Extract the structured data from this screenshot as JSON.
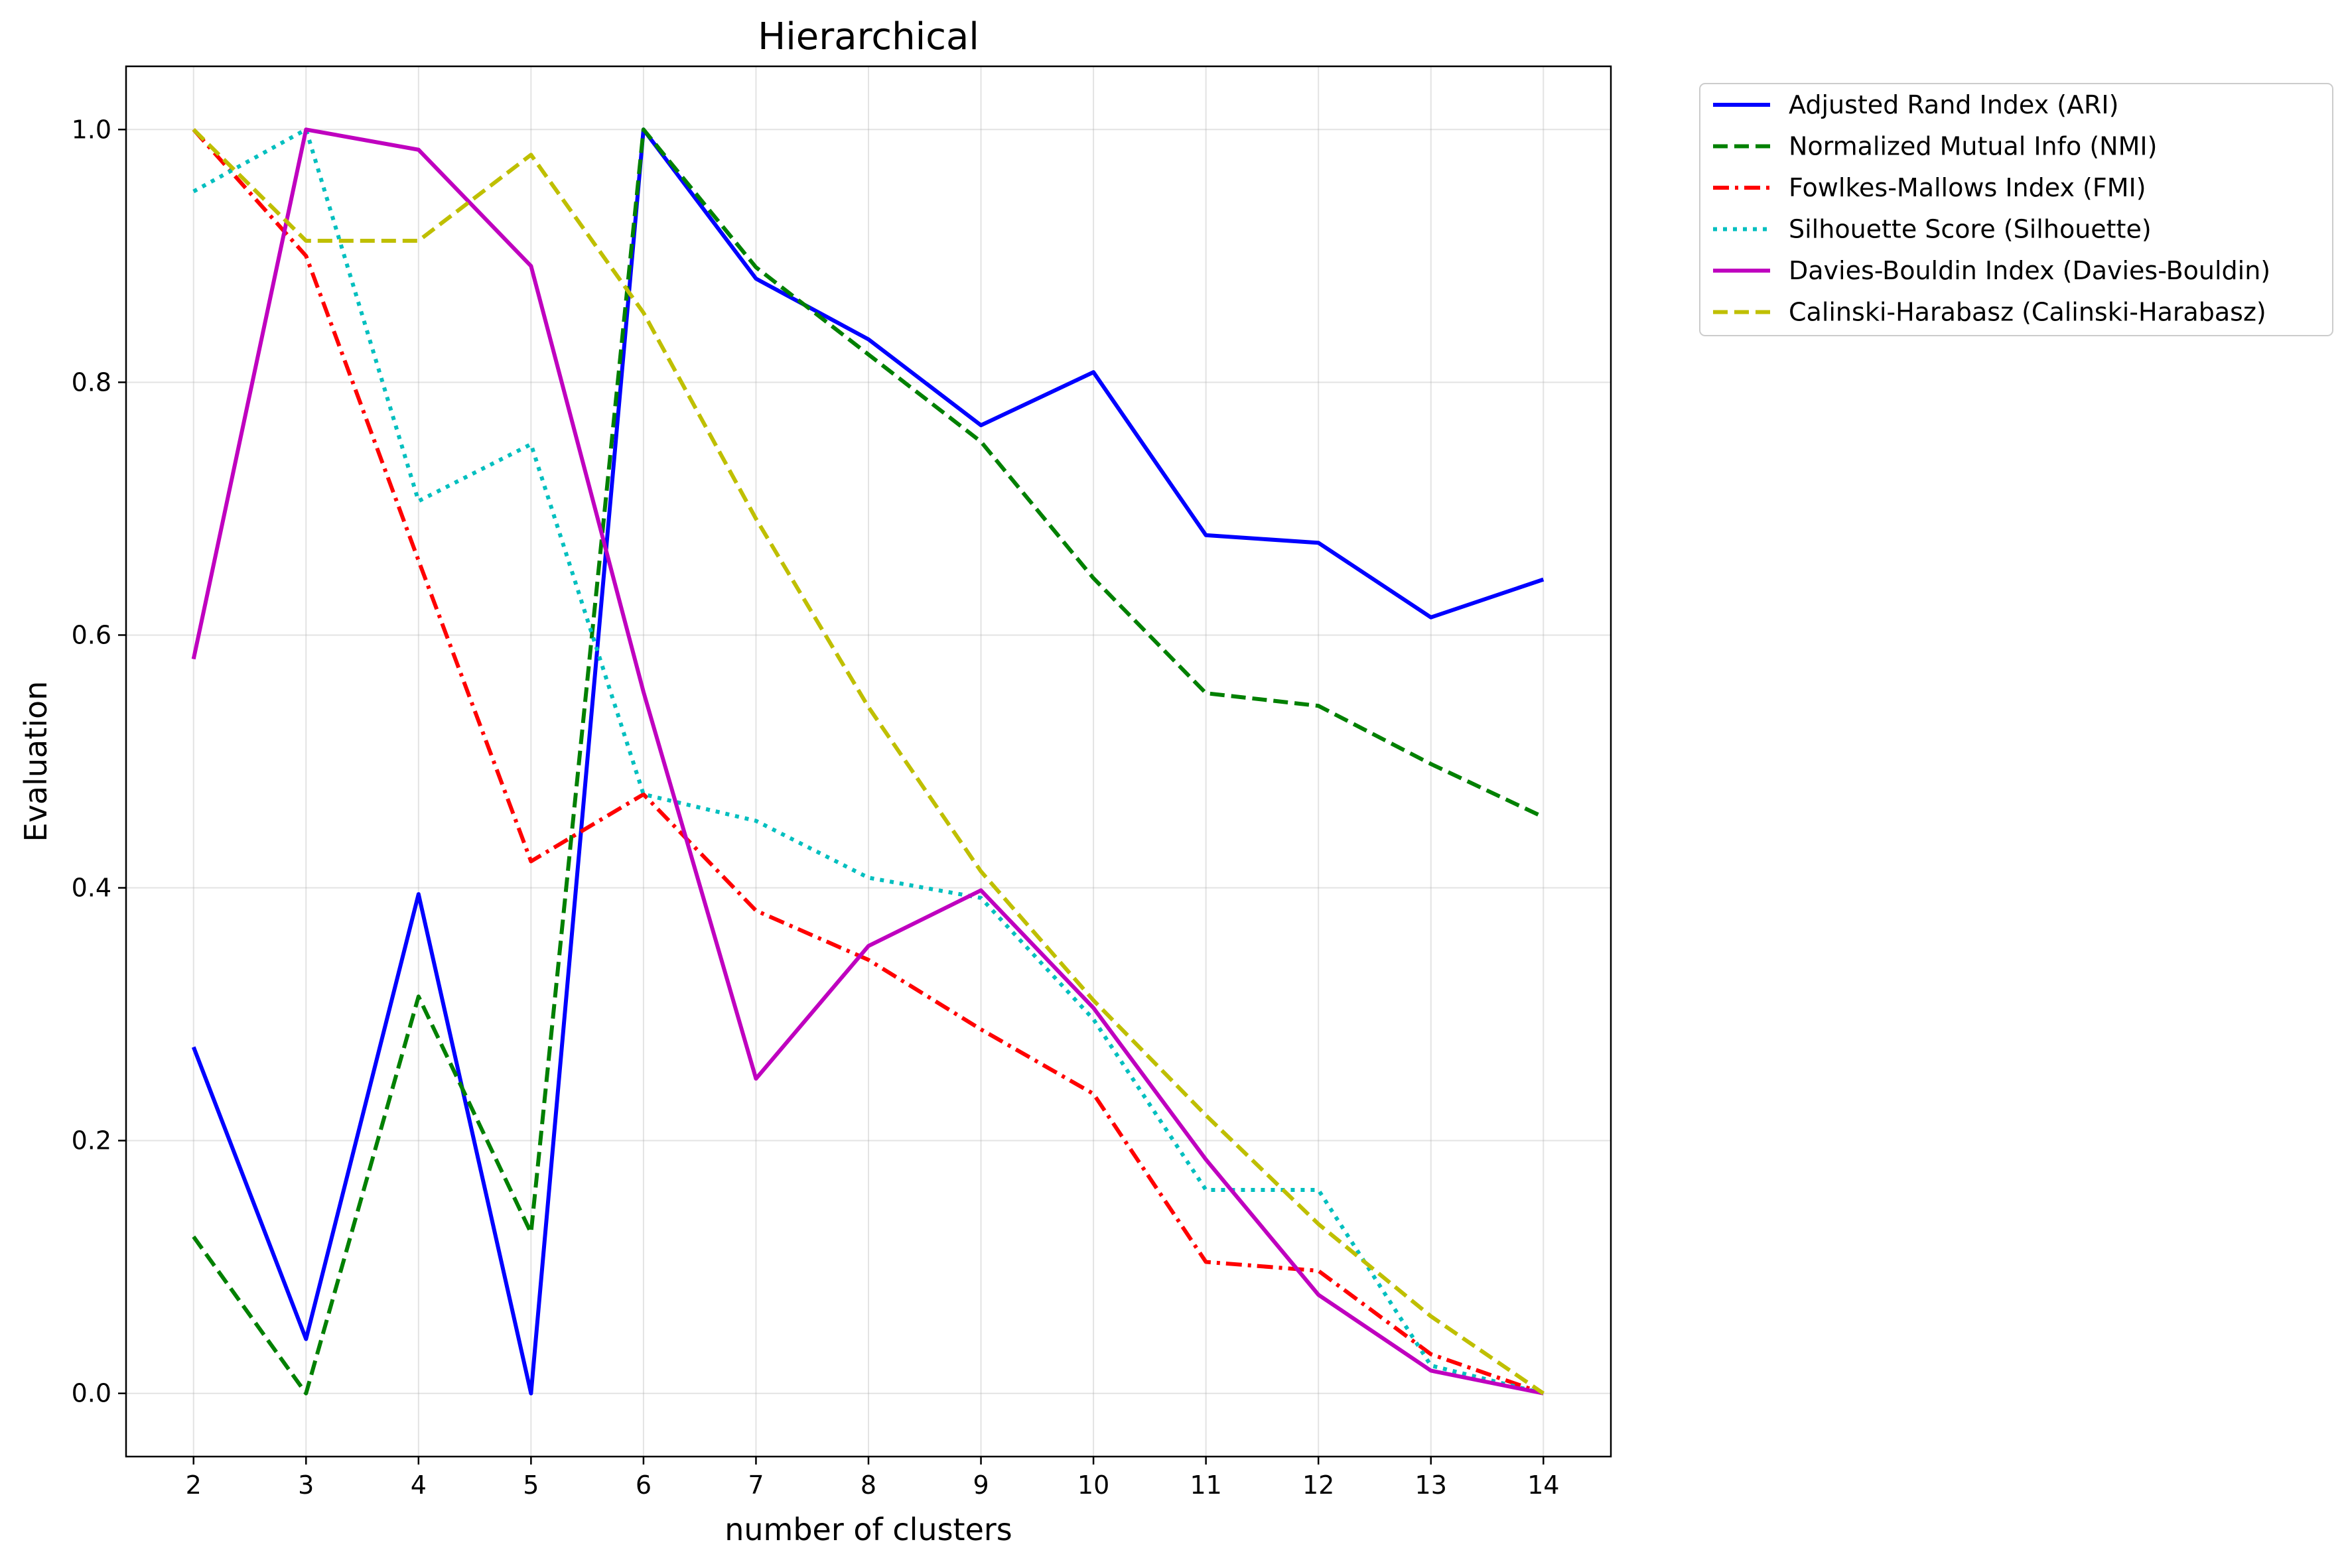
{
  "chart_data": {
    "type": "line",
    "title": "Hierarchical",
    "xlabel": "number of clusters",
    "ylabel": "Evaluation",
    "x": [
      2,
      3,
      4,
      5,
      6,
      7,
      8,
      9,
      10,
      11,
      12,
      13,
      14
    ],
    "xticks": [
      "2",
      "3",
      "4",
      "5",
      "6",
      "7",
      "8",
      "9",
      "10",
      "11",
      "12",
      "13",
      "14"
    ],
    "yticks": [
      "0.0",
      "0.2",
      "0.4",
      "0.6",
      "0.8",
      "1.0"
    ],
    "ytick_values": [
      0.0,
      0.2,
      0.4,
      0.6,
      0.8,
      1.0
    ],
    "xlim": [
      1.4,
      14.6
    ],
    "ylim": [
      -0.05,
      1.05
    ],
    "grid": true,
    "legend_position": "outside-top-right",
    "series": [
      {
        "name": "Adjusted Rand Index (ARI)",
        "color": "#0000ff",
        "style": "solid",
        "values": [
          0.274,
          0.043,
          0.395,
          0.0,
          1.0,
          0.882,
          0.834,
          0.766,
          0.808,
          0.679,
          0.673,
          0.614,
          0.644
        ]
      },
      {
        "name": "Normalized Mutual Info (NMI)",
        "color": "#008000",
        "style": "dashed",
        "values": [
          0.124,
          0.0,
          0.314,
          0.127,
          1.0,
          0.891,
          0.822,
          0.753,
          0.645,
          0.554,
          0.544,
          0.498,
          0.456
        ]
      },
      {
        "name": "Fowlkes-Mallows Index (FMI)",
        "color": "#ff0000",
        "style": "dashdot",
        "values": [
          1.0,
          0.9,
          0.659,
          0.421,
          0.474,
          0.382,
          0.343,
          0.288,
          0.237,
          0.104,
          0.097,
          0.031,
          0.0
        ]
      },
      {
        "name": "Silhouette Score (Silhouette)",
        "color": "#00bfbf",
        "style": "dotted",
        "values": [
          0.951,
          1.0,
          0.706,
          0.751,
          0.474,
          0.453,
          0.408,
          0.392,
          0.296,
          0.161,
          0.161,
          0.022,
          0.0
        ]
      },
      {
        "name": "Davies-Bouldin Index (Davies-Bouldin)",
        "color": "#bf00bf",
        "style": "solid",
        "values": [
          0.581,
          1.0,
          0.984,
          0.892,
          0.555,
          0.249,
          0.354,
          0.398,
          0.305,
          0.185,
          0.078,
          0.018,
          0.0
        ]
      },
      {
        "name": "Calinski-Harabasz (Calinski-Harabasz)",
        "color": "#bfbf00",
        "style": "dashed",
        "values": [
          1.0,
          0.912,
          0.912,
          0.98,
          0.855,
          0.692,
          0.543,
          0.413,
          0.311,
          0.22,
          0.134,
          0.061,
          0.0
        ]
      }
    ]
  }
}
